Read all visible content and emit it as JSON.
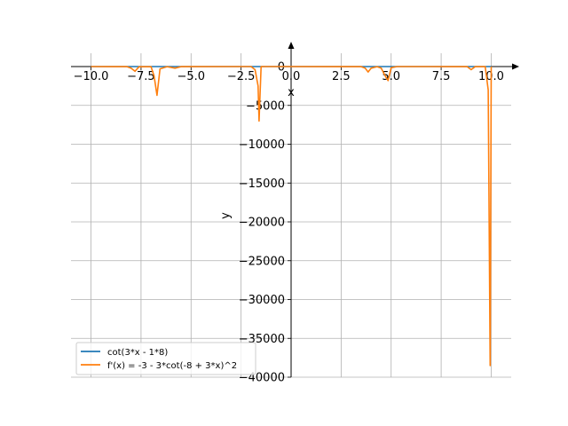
{
  "chart_data": {
    "type": "line",
    "xlabel": "x",
    "ylabel": "y",
    "xlim": [
      -11.0,
      11.0
    ],
    "ylim": [
      -40000,
      0
    ],
    "grid": true,
    "legend_position": "lower-left",
    "x_ticks": [
      -10.0,
      -7.5,
      -5.0,
      -2.5,
      0.0,
      2.5,
      5.0,
      7.5,
      10.0
    ],
    "x_tick_labels": [
      "−10.0",
      "−7.5",
      "−5.0",
      "−2.5",
      "0.0",
      "2.5",
      "5.0",
      "7.5",
      "10.0"
    ],
    "y_ticks": [
      0,
      -5000,
      -10000,
      -15000,
      -20000,
      -25000,
      -30000,
      -35000,
      -40000
    ],
    "y_tick_labels": [
      "0",
      "−5000",
      "−10000",
      "−15000",
      "−20000",
      "−25000",
      "−30000",
      "−35000",
      "−40000"
    ],
    "series": [
      {
        "name": "cot(3*x - 1*8)",
        "color": "#1f77b4",
        "x": [
          -10.0,
          -7.5,
          -5.0,
          -2.5,
          0.0,
          2.5,
          5.0,
          7.5,
          10.0
        ],
        "y": [
          0,
          0,
          0,
          0,
          0,
          0,
          0,
          0,
          0
        ]
      },
      {
        "name": "f'(x) = -3 - 3*cot(-8 + 3*x)^2",
        "color": "#ff7f0e",
        "x": [
          -10.0,
          -8.2,
          -8.0,
          -7.8,
          -7.6,
          -7.0,
          -6.85,
          -6.7,
          -6.55,
          -6.2,
          -5.8,
          -5.5,
          -3.0,
          -2.0,
          -1.8,
          -1.65,
          -1.6,
          -1.5,
          -1.3,
          0.0,
          3.5,
          3.7,
          3.85,
          4.0,
          4.3,
          4.5,
          4.7,
          4.85,
          5.0,
          5.3,
          7.0,
          8.8,
          9.0,
          9.2,
          9.7,
          9.85,
          9.95,
          10.0
        ],
        "y": [
          -3,
          -10,
          -200,
          -600,
          -20,
          -20,
          -1200,
          -3700,
          -300,
          -10,
          -200,
          -10,
          -5,
          -5,
          -400,
          -2500,
          -7000,
          -10,
          -5,
          -5,
          -10,
          -200,
          -700,
          -200,
          -10,
          -200,
          -1200,
          -1800,
          -150,
          -5,
          -5,
          -10,
          -400,
          -10,
          -5,
          -3000,
          -38500,
          -3
        ]
      }
    ]
  }
}
